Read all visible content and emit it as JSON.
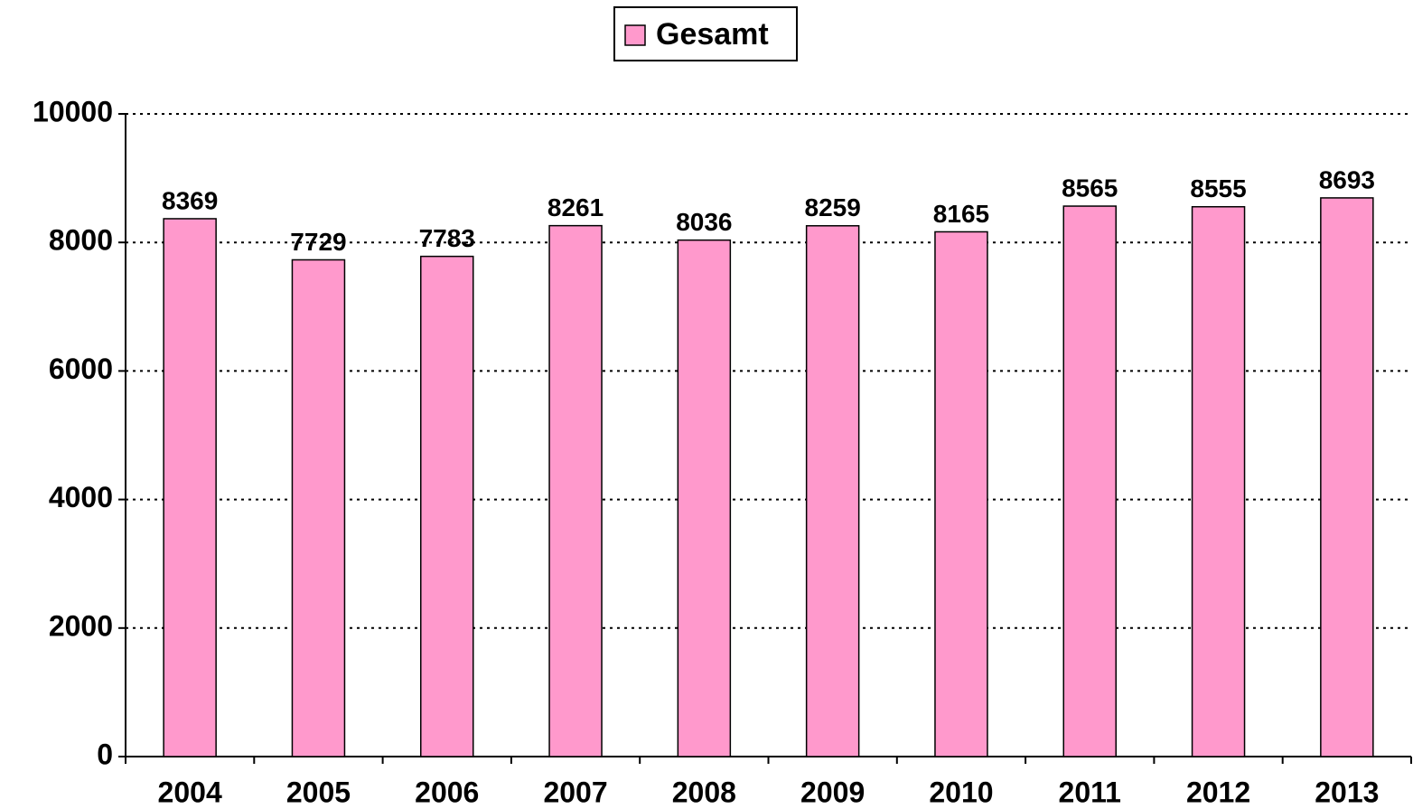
{
  "chart_data": {
    "type": "bar",
    "categories": [
      "2004",
      "2005",
      "2006",
      "2007",
      "2008",
      "2009",
      "2010",
      "2011",
      "2012",
      "2013"
    ],
    "series": [
      {
        "name": "Gesamt",
        "color": "#ff99cc",
        "values": [
          8369,
          7729,
          7783,
          8261,
          8036,
          8259,
          8165,
          8565,
          8555,
          8693
        ]
      }
    ],
    "ylim": [
      0,
      10000
    ],
    "yticks": [
      0,
      2000,
      4000,
      6000,
      8000,
      10000
    ],
    "grid": true,
    "legend": "top"
  }
}
